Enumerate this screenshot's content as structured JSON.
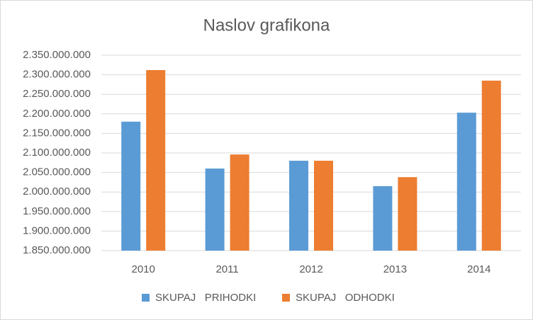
{
  "chart_data": {
    "type": "bar",
    "title": "Naslov grafikona",
    "categories": [
      "2010",
      "2011",
      "2012",
      "2013",
      "2014"
    ],
    "series": [
      {
        "name": "SKUPAJ   PRIHODKI",
        "color": "#5b9bd5",
        "values": [
          2180000000,
          2060000000,
          2080000000,
          2015000000,
          2203000000
        ]
      },
      {
        "name": "SKUPAJ   ODHODKI",
        "color": "#ed7d31",
        "values": [
          2312000000,
          2096000000,
          2080000000,
          2038000000,
          2285000000
        ]
      }
    ],
    "ylim": [
      1850000000,
      2350000000
    ],
    "yticks": [
      {
        "value": 1850000000,
        "label": "1.850.000.000"
      },
      {
        "value": 1900000000,
        "label": "1.900.000.000"
      },
      {
        "value": 1950000000,
        "label": "1.950.000.000"
      },
      {
        "value": 2000000000,
        "label": "2.000.000.000"
      },
      {
        "value": 2050000000,
        "label": "2.050.000.000"
      },
      {
        "value": 2100000000,
        "label": "2.100.000.000"
      },
      {
        "value": 2150000000,
        "label": "2.150.000.000"
      },
      {
        "value": 2200000000,
        "label": "2.200.000.000"
      },
      {
        "value": 2250000000,
        "label": "2.250.000.000"
      },
      {
        "value": 2300000000,
        "label": "2.300.000.000"
      },
      {
        "value": 2350000000,
        "label": "2.350.000.000"
      }
    ],
    "grid": true,
    "legend": "bottom"
  }
}
